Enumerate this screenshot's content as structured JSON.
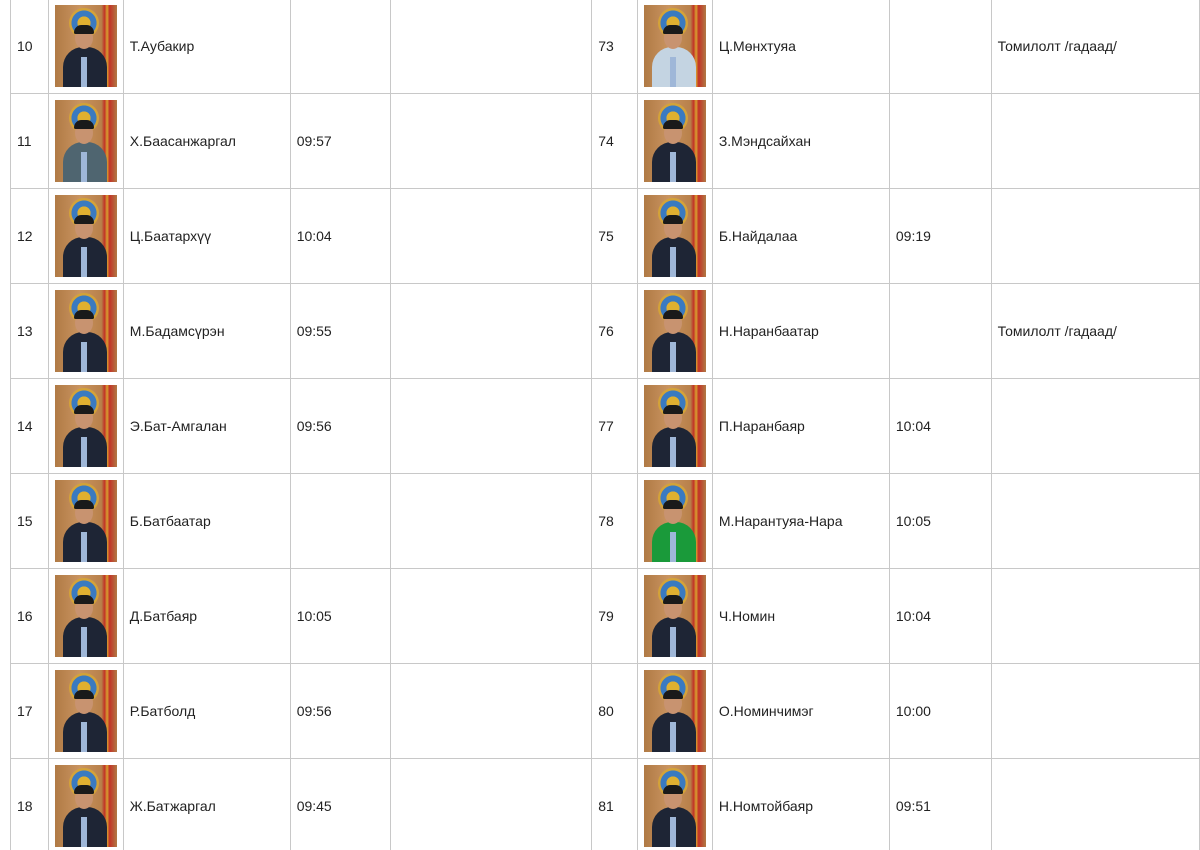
{
  "rows": [
    {
      "left": {
        "no": "10",
        "name": "Т.Аубакир",
        "time": "",
        "note": ""
      },
      "right": {
        "no": "73",
        "name": "Ц.Мөнхтуяа",
        "time": "",
        "note": "Томилолт /гадаад/"
      }
    },
    {
      "left": {
        "no": "11",
        "name": "Х.Баасанжаргал",
        "time": "09:57",
        "note": ""
      },
      "right": {
        "no": "74",
        "name": "З.Мэндсайхан",
        "time": "",
        "note": ""
      }
    },
    {
      "left": {
        "no": "12",
        "name": "Ц.Баатархүү",
        "time": "10:04",
        "note": ""
      },
      "right": {
        "no": "75",
        "name": "Б.Найдалаа",
        "time": "09:19",
        "note": ""
      }
    },
    {
      "left": {
        "no": "13",
        "name": "М.Бадамсүрэн",
        "time": "09:55",
        "note": ""
      },
      "right": {
        "no": "76",
        "name": "Н.Наранбаатар",
        "time": "",
        "note": "Томилолт /гадаад/"
      }
    },
    {
      "left": {
        "no": "14",
        "name": "Э.Бат-Амгалан",
        "time": "09:56",
        "note": ""
      },
      "right": {
        "no": "77",
        "name": "П.Наранбаяр",
        "time": "10:04",
        "note": ""
      }
    },
    {
      "left": {
        "no": "15",
        "name": "Б.Батбаатар",
        "time": "",
        "note": ""
      },
      "right": {
        "no": "78",
        "name": "М.Нарантуяа-Нара",
        "time": "10:05",
        "note": ""
      }
    },
    {
      "left": {
        "no": "16",
        "name": "Д.Батбаяр",
        "time": "10:05",
        "note": ""
      },
      "right": {
        "no": "79",
        "name": "Ч.Номин",
        "time": "10:04",
        "note": ""
      }
    },
    {
      "left": {
        "no": "17",
        "name": "Р.Батболд",
        "time": "09:56",
        "note": ""
      },
      "right": {
        "no": "80",
        "name": "О.Номинчимэг",
        "time": "10:00",
        "note": ""
      }
    },
    {
      "left": {
        "no": "18",
        "name": "Ж.Батжаргал",
        "time": "09:45",
        "note": ""
      },
      "right": {
        "no": "81",
        "name": "Н.Номтойбаяр",
        "time": "09:51",
        "note": ""
      }
    }
  ],
  "photo_styles": {
    "left": [
      "",
      "grey",
      "",
      "",
      "",
      "",
      "",
      "",
      ""
    ],
    "right": [
      "light",
      "",
      "",
      "",
      "",
      "green",
      "",
      "",
      ""
    ]
  }
}
